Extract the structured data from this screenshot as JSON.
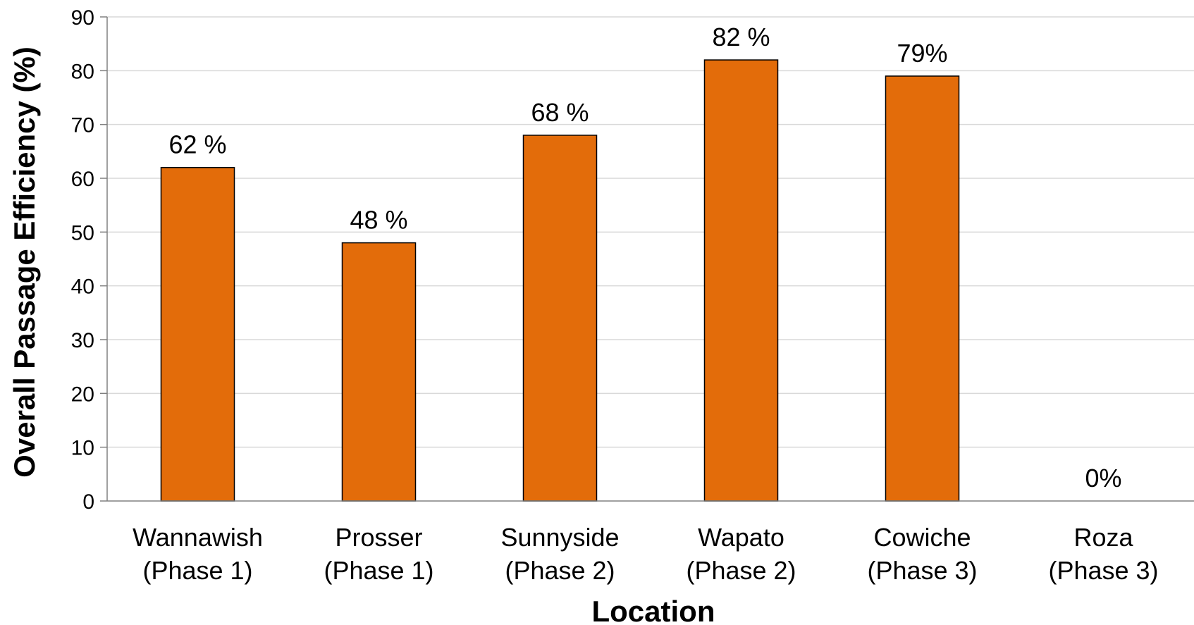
{
  "chart_data": {
    "type": "bar",
    "title": "",
    "xlabel": "Location",
    "ylabel": "Overall Passage Efficiency (%)",
    "categories": [
      [
        "Wannawish",
        "(Phase 1)"
      ],
      [
        "Prosser",
        "(Phase 1)"
      ],
      [
        "Sunnyside",
        "(Phase 2)"
      ],
      [
        "Wapato",
        "(Phase 2)"
      ],
      [
        "Cowiche",
        "(Phase 3)"
      ],
      [
        "Roza",
        "(Phase 3)"
      ]
    ],
    "values": [
      62,
      48,
      68,
      82,
      79,
      0
    ],
    "data_labels": [
      "62 %",
      "48 %",
      "68 %",
      "82 %",
      "79%",
      "0%"
    ],
    "ylim": [
      0,
      90
    ],
    "yticks": [
      0,
      10,
      20,
      30,
      40,
      50,
      60,
      70,
      80,
      90
    ],
    "grid": true,
    "legend": "none",
    "bar_color": "#e36c0a",
    "bar_edge_color": "#000000"
  }
}
